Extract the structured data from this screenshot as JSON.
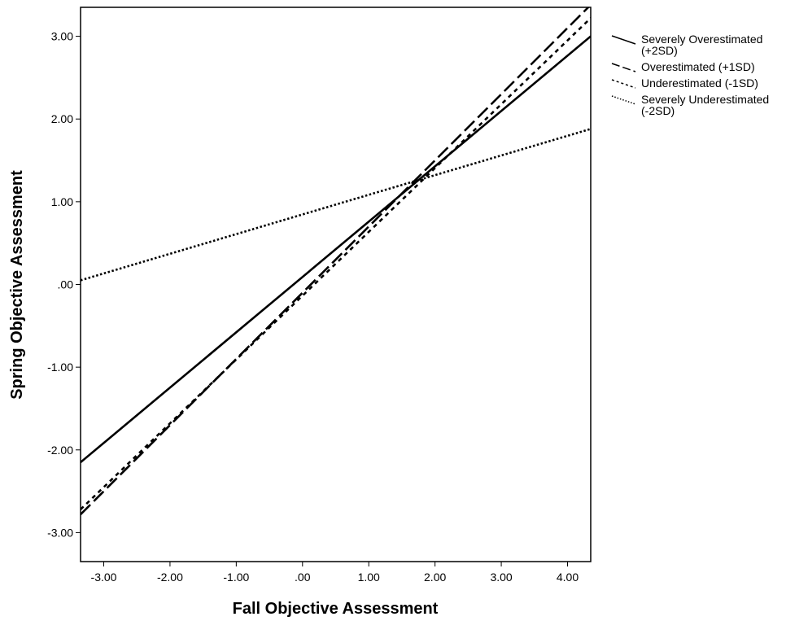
{
  "chart_data": {
    "type": "line",
    "title": "",
    "xlabel": "Fall Objective Assessment",
    "ylabel": "Spring Objective Assessment",
    "xlim": [
      -3.35,
      4.35
    ],
    "ylim": [
      -3.35,
      3.35
    ],
    "x_ticks": [
      -3,
      -2,
      -1,
      0,
      1,
      2,
      3,
      4
    ],
    "x_tick_labels": [
      "-3.00",
      "-2.00",
      "-1.00",
      ".00",
      "1.00",
      "2.00",
      "3.00",
      "4.00"
    ],
    "y_ticks": [
      -3,
      -2,
      -1,
      0,
      1,
      2,
      3
    ],
    "y_tick_labels": [
      "-3.00",
      "-2.00",
      "-1.00",
      ".00",
      "1.00",
      "2.00",
      "3.00"
    ],
    "grid": false,
    "legend_position": "right",
    "series": [
      {
        "name": "Severely Overestimated (+2SD)",
        "legend_lines": [
          "Severely Overestimated",
          "(+2SD)"
        ],
        "dash": "solid",
        "x": [
          -3.35,
          4.35
        ],
        "y": [
          -2.15,
          3.0
        ]
      },
      {
        "name": "Overestimated (+1SD)",
        "legend_lines": [
          "Overestimated (+1SD)"
        ],
        "dash": "long-dash",
        "x": [
          -3.35,
          4.35
        ],
        "y": [
          -2.78,
          3.38
        ]
      },
      {
        "name": "Underestimated (-1SD)",
        "legend_lines": [
          "Underestimated (-1SD)"
        ],
        "dash": "short-dash",
        "x": [
          -3.35,
          4.35
        ],
        "y": [
          -2.72,
          3.22
        ]
      },
      {
        "name": "Severely Underestimated (-2SD)",
        "legend_lines": [
          "Severely Underestimated",
          "(-2SD)"
        ],
        "dash": "dotted",
        "x": [
          -3.35,
          4.35
        ],
        "y": [
          0.05,
          1.88
        ]
      }
    ]
  }
}
